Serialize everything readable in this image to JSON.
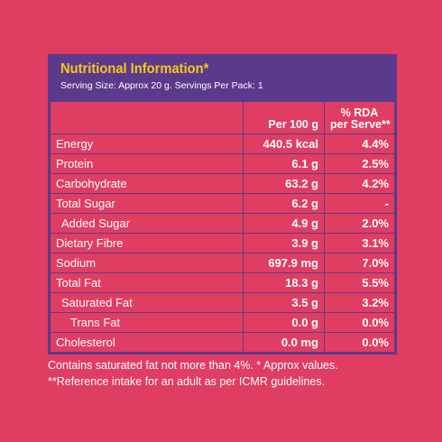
{
  "panel": {
    "title": "Nutritional Information*",
    "subtitle": "Serving Size: Approx 20 g. Servings Per Pack: 1",
    "columns": {
      "per100": "Per 100 g",
      "rda_line1": "% RDA",
      "rda_line2": "per Serve**"
    },
    "rows": [
      {
        "name": "Energy",
        "per100": "440.5 kcal",
        "rda": "4.4%"
      },
      {
        "name": "Protein",
        "per100": "6.1 g",
        "rda": "2.5%"
      },
      {
        "name": "Carbohydrate",
        "per100": "63.2 g",
        "rda": "4.2%"
      },
      {
        "name": "Total Sugar",
        "per100": "6.2 g",
        "rda": "-"
      },
      {
        "name": "Added Sugar",
        "per100": "4.9 g",
        "rda": "2.0%"
      },
      {
        "name": "Dietary Fibre",
        "per100": "3.9 g",
        "rda": "3.1%"
      },
      {
        "name": "Sodium",
        "per100": "697.9 mg",
        "rda": "7.0%"
      },
      {
        "name": "Total Fat",
        "per100": "18.3 g",
        "rda": "5.5%"
      },
      {
        "name": "Saturated Fat",
        "per100": "3.5 g",
        "rda": "3.2%"
      },
      {
        "name": "Trans Fat",
        "per100": "0.0 g",
        "rda": "0.0%"
      },
      {
        "name": "Cholesterol",
        "per100": "0.0 mg",
        "rda": "0.0%"
      }
    ]
  },
  "notes": {
    "line1": "Contains saturated fat not more than 4%. * Approx values.",
    "line2": "**Reference intake for an adult as per ICMR guidelines."
  },
  "colors": {
    "background": "#e03d62",
    "panel_header": "#5b3a8c",
    "title": "#f6c81a"
  }
}
